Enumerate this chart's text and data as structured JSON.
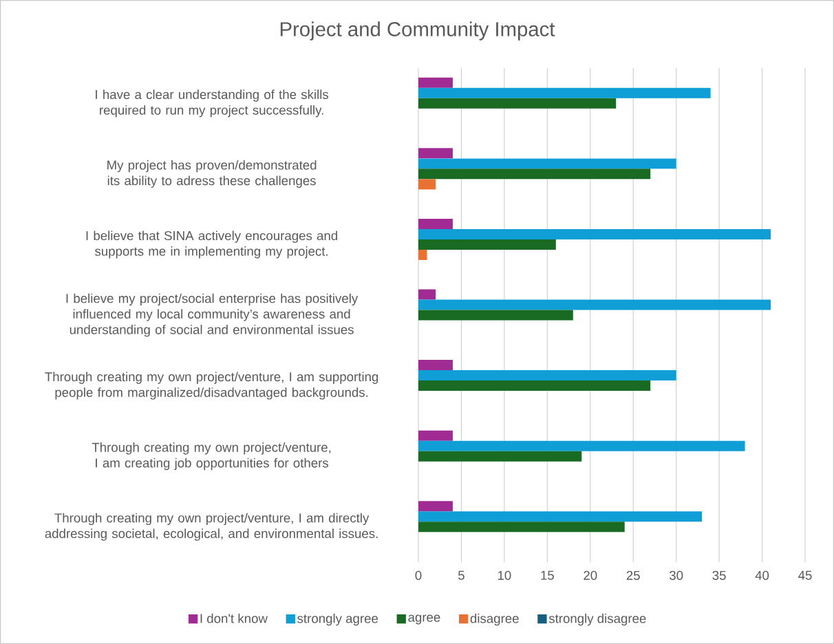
{
  "chart_data": {
    "type": "bar",
    "orientation": "horizontal",
    "title": "Project and Community Impact",
    "categories": [
      "I have a  clear understanding of the skills required to run my project successfully.",
      "My project has proven/demonstrated its ability to adress these challenges",
      "I believe that SINA actively encourages and supports me in implementing my project.",
      "I believe my project/social enterprise has positively influenced my local community’s awareness and understanding of social and environmental issues",
      "Through creating my own project/venture, I am supporting people from marginalized/disadvantaged backgrounds.",
      "Through creating my own project/venture, I am creating job opportunities for others",
      "Through creating my own project/venture, I am directly addressing societal, ecological, and environmental issues."
    ],
    "series": [
      {
        "name": "I don't know",
        "color": "#a02b93",
        "values": [
          4,
          4,
          4,
          2,
          4,
          4,
          4
        ]
      },
      {
        "name": "strongly  agree",
        "color": "#0f9ed5",
        "values": [
          34,
          30,
          41,
          41,
          30,
          38,
          33
        ]
      },
      {
        "name": "agree",
        "color": "#196b24",
        "values": [
          23,
          27,
          16,
          18,
          27,
          19,
          24
        ]
      },
      {
        "name": "disagree",
        "color": "#e97132",
        "values": [
          0,
          2,
          1,
          0,
          0,
          0,
          0
        ]
      },
      {
        "name": "strongly disagree",
        "color": "#156082",
        "values": [
          0,
          0,
          0,
          0,
          0,
          0,
          0
        ]
      }
    ],
    "xlim": [
      0,
      45
    ],
    "xticks": [
      0,
      5,
      10,
      15,
      20,
      25,
      30,
      35,
      40,
      45
    ],
    "grid": "x",
    "legend": "bottom"
  }
}
